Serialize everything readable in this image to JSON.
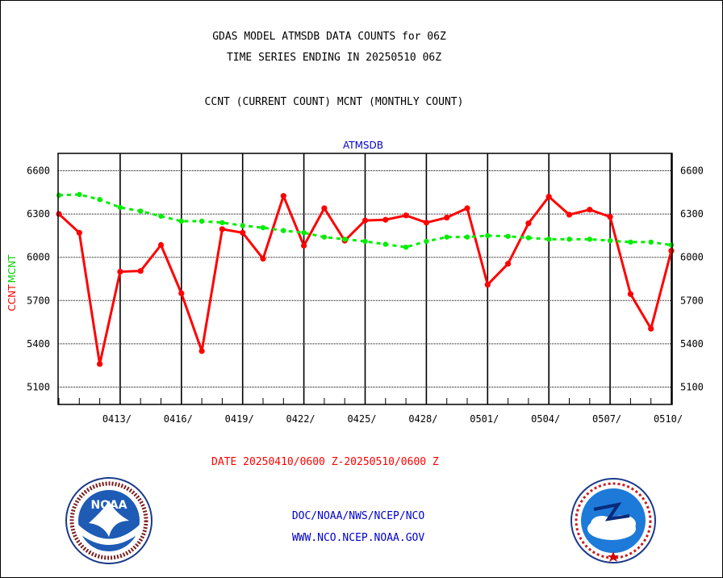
{
  "header": {
    "line1": "GDAS MODEL ATMSDB DATA COUNTS for 06Z",
    "line2": "TIME SERIES ENDING IN 20250510 06Z",
    "line3": "CCNT (CURRENT COUNT) MCNT (MONTHLY COUNT)"
  },
  "footer": {
    "date_range": "DATE 20250410/0600 Z-20250510/0600 Z",
    "link1": "DOC/NOAA/NWS/NCEP/NCO",
    "link2": "WWW.NCO.NCEP.NOAA.GOV"
  },
  "logos": {
    "left": "NOAA",
    "right": "NATIONAL WEATHER SERVICE"
  },
  "chart_data": {
    "type": "line",
    "title": "ATMSDB",
    "xlabel": "",
    "ylabel": "CCNT  MCNT",
    "ylim": [
      4980,
      6720
    ],
    "yticks": [
      5100,
      5400,
      5700,
      6000,
      6300,
      6600
    ],
    "x_tick_labels": [
      "0413/",
      "0416/",
      "0419/",
      "0422/",
      "0425/",
      "0428/",
      "0501/",
      "0504/",
      "0507/",
      "0510/"
    ],
    "x": [
      "0410",
      "0411",
      "0412",
      "0413",
      "0414",
      "0415",
      "0416",
      "0417",
      "0418",
      "0419",
      "0420",
      "0421",
      "0422",
      "0423",
      "0424",
      "0425",
      "0426",
      "0427",
      "0428",
      "0429",
      "0430",
      "0501",
      "0502",
      "0503",
      "0504",
      "0505",
      "0506",
      "0507",
      "0508",
      "0509",
      "0510"
    ],
    "grid": true,
    "series": [
      {
        "name": "CCNT",
        "color": "#ff0000",
        "values": [
          6300,
          6170,
          5260,
          5900,
          5905,
          6085,
          5750,
          5350,
          6195,
          6170,
          5990,
          6425,
          6080,
          6340,
          6115,
          6255,
          6260,
          6290,
          6240,
          6275,
          6340,
          5810,
          5955,
          6235,
          6420,
          6295,
          6330,
          6280,
          5745,
          5505,
          6045
        ]
      },
      {
        "name": "MCNT",
        "color": "#00ee00",
        "values": [
          6430,
          6435,
          6400,
          6345,
          6320,
          6285,
          6250,
          6250,
          6240,
          6220,
          6205,
          6185,
          6170,
          6140,
          6125,
          6110,
          6090,
          6070,
          6110,
          6140,
          6140,
          6150,
          6145,
          6135,
          6125,
          6125,
          6125,
          6115,
          6105,
          6105,
          6085
        ]
      }
    ]
  }
}
